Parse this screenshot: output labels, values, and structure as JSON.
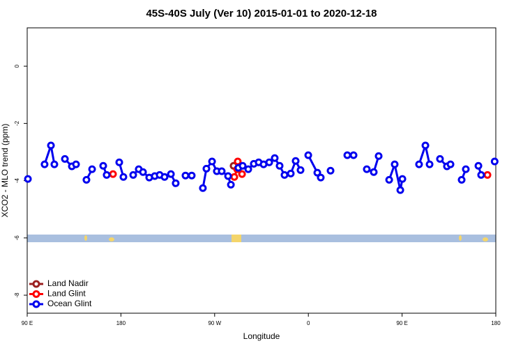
{
  "chart_data": {
    "type": "line",
    "title": "45S-40S July (Ver 10)   2015-01-01 to 2020-12-18",
    "x_label": "Longitude",
    "y_label": "XCO2 - MLO trend (ppm)",
    "xlim": [
      90,
      540
    ],
    "ylim": [
      -8.63,
      1.34
    ],
    "xticks": [
      {
        "value": 90,
        "label": "90 E"
      },
      180,
      {
        "value": 270,
        "label": "90 W"
      },
      {
        "value": 360,
        "label": "0"
      },
      {
        "value": 450,
        "label": "90 E"
      },
      {
        "value": 540,
        "label": "180"
      }
    ],
    "yticks": [
      0,
      -2,
      -4,
      -6,
      -8
    ],
    "grid": false,
    "legend": "bottom-left",
    "series": [
      {
        "name": "Land Nadir",
        "color": "#9b2020",
        "x": [
          288.2
        ],
        "values": [
          -3.48
        ]
      },
      {
        "name": "Land Glint",
        "color": "#ff0000",
        "x": [
          172.4,
          null,
          288.9,
          291.6,
          292.2,
          296.3,
          null,
          532.0
        ],
        "values": [
          -3.77,
          null,
          -3.87,
          -3.6,
          -3.33,
          -3.77,
          null,
          -3.8
        ]
      },
      {
        "name": "Ocean Glint",
        "color": "#0000ee",
        "x": [
          90.7,
          null,
          106.7,
          112.8,
          116.1,
          null,
          126.2,
          132.9,
          136.9,
          null,
          146.9,
          152.3,
          null,
          163.0,
          166.3,
          null,
          178.4,
          182.4,
          null,
          191.8,
          197.1,
          201.2,
          207.2,
          212.5,
          217.2,
          221.9,
          228.0,
          232.6,
          null,
          242.0,
          248.0,
          null,
          258.7,
          262.1,
          267.5,
          272.1,
          276.8,
          282.9,
          285.6,
          null,
          292.8,
          296.9,
          302.3,
          307.6,
          312.3,
          317.0,
          322.4,
          327.7,
          332.4,
          337.1,
          343.1,
          347.8,
          352.5,
          null,
          359.9,
          368.6,
          371.9,
          null,
          381.3,
          null,
          397.4,
          403.4,
          null,
          416.1,
          422.8,
          427.5,
          null,
          437.6,
          442.9,
          448.3,
          450.3,
          null,
          466.3,
          472.4,
          476.4,
          null,
          486.4,
          493.1,
          496.5,
          null,
          507.2,
          511.2,
          null,
          523.3,
          525.9,
          null,
          538.9
        ],
        "values": [
          -3.94,
          null,
          -3.43,
          -2.77,
          -3.43,
          null,
          -3.24,
          -3.5,
          -3.43,
          null,
          -3.97,
          -3.6,
          null,
          -3.48,
          -3.8,
          null,
          -3.36,
          -3.87,
          null,
          -3.8,
          -3.6,
          -3.7,
          -3.89,
          -3.84,
          -3.8,
          -3.87,
          -3.77,
          -4.09,
          null,
          -3.82,
          -3.82,
          null,
          -4.26,
          -3.58,
          -3.33,
          -3.67,
          -3.67,
          -3.84,
          -4.14,
          null,
          -3.55,
          -3.48,
          -3.6,
          -3.41,
          -3.36,
          -3.43,
          -3.36,
          -3.21,
          -3.48,
          -3.8,
          -3.75,
          -3.31,
          -3.63,
          null,
          -3.11,
          -3.72,
          -3.89,
          null,
          -3.65,
          null,
          -3.11,
          -3.11,
          null,
          -3.6,
          -3.7,
          -3.14,
          null,
          -3.97,
          -3.43,
          -4.33,
          -3.94,
          null,
          -3.43,
          -2.77,
          -3.43,
          null,
          -3.24,
          -3.5,
          -3.43,
          null,
          -3.97,
          -3.6,
          null,
          -3.48,
          -3.8,
          null,
          -3.33
        ]
      }
    ]
  }
}
